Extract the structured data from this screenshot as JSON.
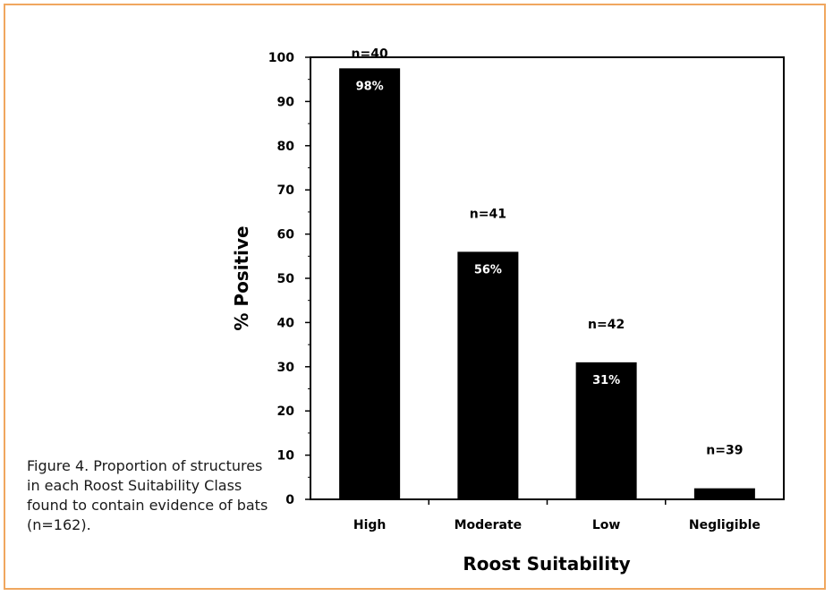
{
  "caption": "Figure 4. Proportion of structures in each Roost Suitability Class found to contain evidence of bats (n=162).",
  "colors": {
    "frame": "#f0a75f",
    "bar": "#000000"
  },
  "chart_data": {
    "type": "bar",
    "title": "",
    "xlabel": "Roost Suitability",
    "ylabel": "% Positive",
    "categories": [
      "High",
      "Moderate",
      "Low",
      "Negligible"
    ],
    "values": [
      97.5,
      56,
      31,
      2.5
    ],
    "value_labels": [
      "98%",
      "56%",
      "31%",
      ""
    ],
    "n_labels": [
      "n=40",
      "n=41",
      "n=42",
      "n=39"
    ],
    "ylim": [
      0,
      100
    ],
    "yticks": [
      0,
      10,
      20,
      30,
      40,
      50,
      60,
      70,
      80,
      90,
      100
    ],
    "grid": false,
    "legend": "none"
  }
}
